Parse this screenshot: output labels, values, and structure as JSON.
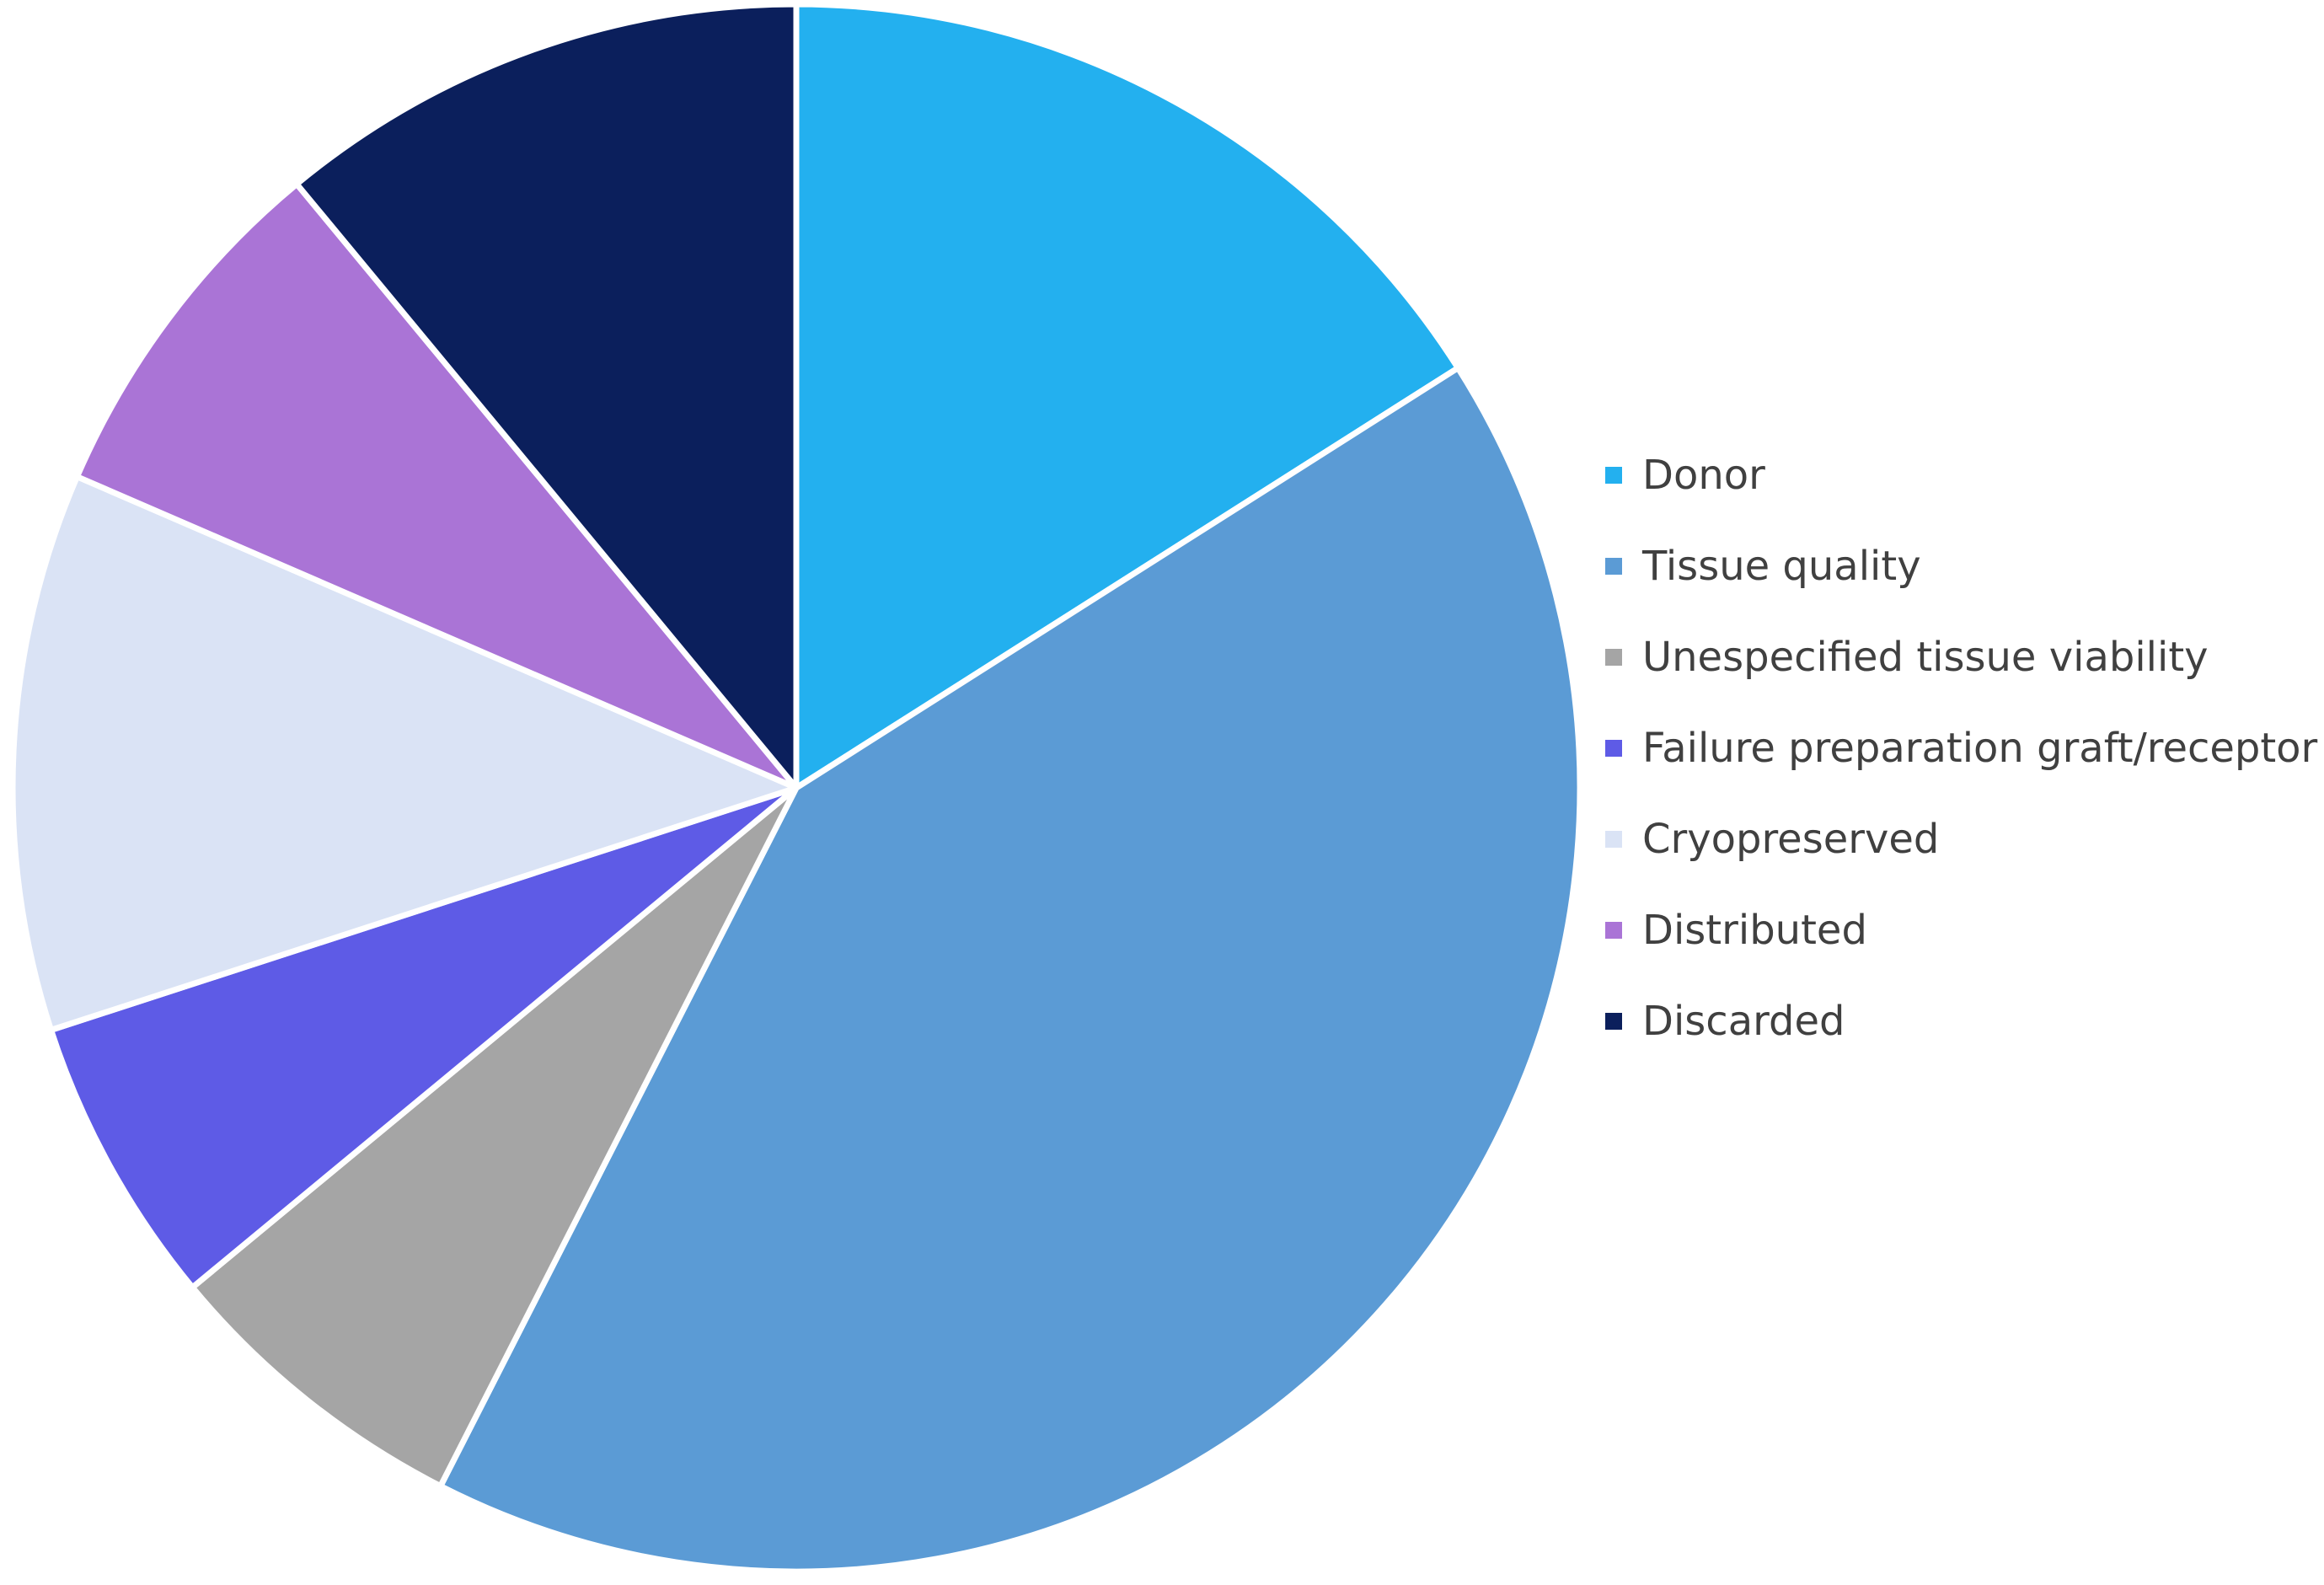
{
  "chart_data": {
    "type": "pie",
    "title": "",
    "start_angle_deg": 0,
    "direction": "clockwise",
    "legend_position": "right",
    "slices": [
      {
        "label": "Donor",
        "value": 16.0,
        "color": "#23b0ef"
      },
      {
        "label": "Tissue quality",
        "value": 41.5,
        "color": "#5b9bd5"
      },
      {
        "label": "Unespecified tissue viability",
        "value": 6.5,
        "color": "#a5a5a5"
      },
      {
        "label": "Failure preparation graft/receptor",
        "value": 6.0,
        "color": "#5e5be6"
      },
      {
        "label": "Cryopreserved",
        "value": 11.5,
        "color": "#dae3f5"
      },
      {
        "label": "Distributed",
        "value": 7.5,
        "color": "#aa74d6"
      },
      {
        "label": "Discarded",
        "value": 11.0,
        "color": "#0b1f5c"
      }
    ]
  }
}
